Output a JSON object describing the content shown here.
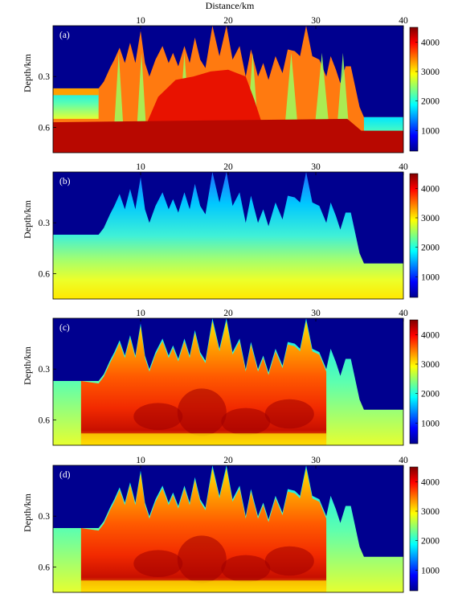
{
  "figure": {
    "top_axis_label": "Distance/km"
  },
  "chart_data": [
    {
      "type": "heatmap",
      "panel_label": "(a)",
      "ylabel": "Depth/km",
      "x_ticks": [
        10,
        20,
        30,
        40
      ],
      "y_ticks": [
        "0.3",
        "0.6"
      ],
      "xlim": [
        0,
        40
      ],
      "ylim": [
        0.75,
        0.0
      ],
      "colorbar": {
        "ticks": [
          1000,
          2000,
          3000,
          4000
        ],
        "range": [
          300,
          4500
        ],
        "colormap": "jet"
      },
      "background_velocity": 300,
      "description_fill": "layered true model",
      "base_velocity": 4300
    },
    {
      "type": "heatmap",
      "panel_label": "(b)",
      "ylabel": "Depth/km",
      "x_ticks": [
        10,
        20,
        30,
        40
      ],
      "y_ticks": [
        "0.3",
        "0.6"
      ],
      "xlim": [
        0,
        40
      ],
      "ylim": [
        0.75,
        0.0
      ],
      "colorbar": {
        "ticks": [
          1000,
          2000,
          3000,
          4000
        ],
        "range": [
          300,
          4500
        ],
        "colormap": "jet"
      },
      "background_velocity": 300,
      "velocity_gradient": [
        1600,
        3400
      ]
    },
    {
      "type": "heatmap",
      "panel_label": "(c)",
      "ylabel": "Depth/km",
      "x_ticks": [
        10,
        20,
        30,
        40
      ],
      "y_ticks": [
        "0.3",
        "0.6"
      ],
      "xlim": [
        0,
        40
      ],
      "ylim": [
        0.75,
        0.0
      ],
      "colorbar": {
        "ticks": [
          1000,
          2000,
          3000,
          4000
        ],
        "range": [
          300,
          4500
        ],
        "colormap": "jet"
      },
      "background_velocity": 300,
      "inverted_range": [
        3000,
        4400
      ]
    },
    {
      "type": "heatmap",
      "panel_label": "(d)",
      "ylabel": "Depth/km",
      "x_ticks": [
        10,
        20,
        30,
        40
      ],
      "y_ticks": [
        "0.3",
        "0.6"
      ],
      "xlim": [
        0,
        40
      ],
      "ylim": [
        0.75,
        0.0
      ],
      "colorbar": {
        "ticks": [
          1000,
          2000,
          3000,
          4000
        ],
        "range": [
          300,
          4500
        ],
        "colormap": "jet"
      },
      "background_velocity": 300,
      "inverted_range": [
        3000,
        4400
      ]
    }
  ],
  "topography_km": [
    [
      0,
      0.37
    ],
    [
      5.2,
      0.37
    ],
    [
      5.8,
      0.33
    ],
    [
      6.5,
      0.25
    ],
    [
      7.0,
      0.2
    ],
    [
      7.6,
      0.13
    ],
    [
      8.2,
      0.22
    ],
    [
      8.8,
      0.1
    ],
    [
      9.4,
      0.22
    ],
    [
      10.0,
      0.03
    ],
    [
      10.5,
      0.22
    ],
    [
      11.0,
      0.3
    ],
    [
      11.7,
      0.2
    ],
    [
      12.5,
      0.12
    ],
    [
      13.2,
      0.22
    ],
    [
      13.7,
      0.16
    ],
    [
      14.3,
      0.24
    ],
    [
      15.0,
      0.12
    ],
    [
      15.6,
      0.22
    ],
    [
      16.2,
      0.07
    ],
    [
      16.8,
      0.2
    ],
    [
      17.4,
      0.25
    ],
    [
      18.2,
      -0.06
    ],
    [
      19.0,
      0.18
    ],
    [
      19.8,
      -0.08
    ],
    [
      20.5,
      0.2
    ],
    [
      21.3,
      0.12
    ],
    [
      22.0,
      0.3
    ],
    [
      22.6,
      0.14
    ],
    [
      23.4,
      0.3
    ],
    [
      24.0,
      0.22
    ],
    [
      24.6,
      0.32
    ],
    [
      25.4,
      0.18
    ],
    [
      26.2,
      0.28
    ],
    [
      26.8,
      0.14
    ],
    [
      27.6,
      0.15
    ],
    [
      28.2,
      0.18
    ],
    [
      28.9,
      -0.02
    ],
    [
      29.6,
      0.18
    ],
    [
      30.4,
      0.2
    ],
    [
      31.2,
      0.3
    ],
    [
      31.7,
      0.18
    ],
    [
      32.3,
      0.26
    ],
    [
      32.8,
      0.34
    ],
    [
      33.4,
      0.24
    ],
    [
      34.0,
      0.24
    ],
    [
      35.0,
      0.48
    ],
    [
      35.5,
      0.54
    ],
    [
      40,
      0.54
    ]
  ]
}
